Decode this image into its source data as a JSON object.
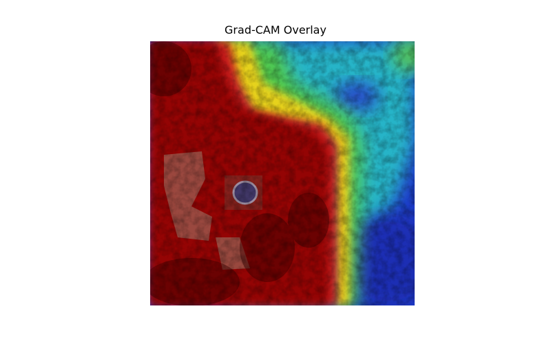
{
  "figure": {
    "title": "Grad-CAM Overlay"
  },
  "image": {
    "description_icon": "gradcam-heatmap-overlay",
    "colormap": "jet",
    "colors": {
      "hot": "#8b0000",
      "red": "#c81e1e",
      "yellow": "#e6d21e",
      "green": "#50c850",
      "cyan": "#28b4c8",
      "blue": "#1e3cc8"
    }
  }
}
